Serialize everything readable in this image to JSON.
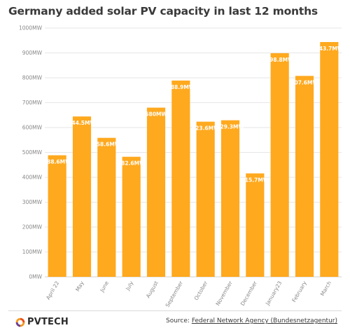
{
  "chart_data": {
    "type": "bar",
    "title": "Germany added solar PV capacity in last 12 months",
    "categories": [
      "April 22",
      "May",
      "June",
      "July",
      "August",
      "September",
      "October",
      "November",
      "December",
      "January23",
      "February",
      "March"
    ],
    "values": [
      488.6,
      644.5,
      558.6,
      482.6,
      680,
      788.9,
      623.6,
      629.3,
      415.7,
      898.8,
      807.6,
      943.7
    ],
    "data_labels": [
      "488.6MW",
      "644.5MW",
      "558.6MW",
      "482.6MW",
      "680MW",
      "788.9MW",
      "623.6MW",
      "629.3MW",
      "415.7MW",
      "898.8MW",
      "807.6MW",
      "943.7MW"
    ],
    "ylim": [
      0,
      1000
    ],
    "yticks": [
      0,
      100,
      200,
      300,
      400,
      500,
      600,
      700,
      800,
      900,
      1000
    ],
    "ytick_labels": [
      "0MW",
      "100MW",
      "200MW",
      "300MW",
      "400MW",
      "500MW",
      "600MW",
      "700MW",
      "800MW",
      "900MW",
      "1000MW"
    ],
    "xlabel": "",
    "ylabel": "",
    "grid": true,
    "bar_color": "#ffa91e"
  },
  "footer": {
    "logo_text": "PVTECH",
    "source_prefix": "Source: ",
    "source_link": "Federal Network Agency (Bundesnetzagentur)"
  },
  "colors": {
    "bar": "#ffa91e",
    "grid": "#e6e6e6",
    "title": "#3a3a3a"
  }
}
